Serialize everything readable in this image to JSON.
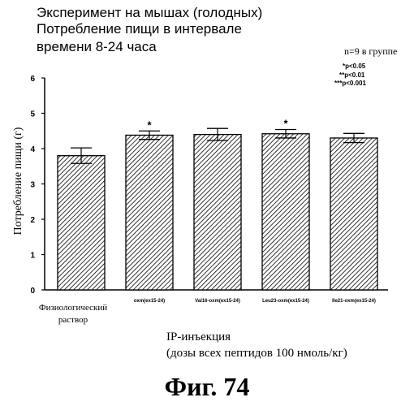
{
  "header": {
    "title_lines": [
      "Эксперимент на мышах (голодных)",
      "Потребление пищи в интервале",
      "времени 8-24 часа"
    ],
    "group_size": "n=9 в группе",
    "significance": [
      "*p<0.05",
      "**p<0.01",
      "***p<0.001"
    ]
  },
  "xaxis": {
    "label_line1": "IP-инъекция",
    "label_line2": "(дозы всех пептидов 100 нмоль/кг)"
  },
  "figure_label": "Фиг.  74",
  "chart_data": {
    "type": "bar",
    "categories": [
      "Физиологический раствор",
      "oxm(ex15-24)",
      "Val16-oxm(ex15-24)",
      "Leu23-oxm(ex15-24)",
      "Ile21-oxm(ex15-24)"
    ],
    "values": [
      3.8,
      4.38,
      4.4,
      4.42,
      4.3
    ],
    "errors": [
      0.22,
      0.12,
      0.17,
      0.12,
      0.13
    ],
    "significance_marks": [
      "",
      "*",
      "",
      "*",
      ""
    ],
    "ylabel": "Потребление пищи (г)",
    "xlabel": "IP-инъекция",
    "ylim": [
      0,
      6
    ],
    "yticks": [
      0,
      1,
      2,
      3,
      4,
      5,
      6
    ],
    "fill_pattern": "diagonal-hatch",
    "grid": false,
    "bar_color": "#000000"
  }
}
